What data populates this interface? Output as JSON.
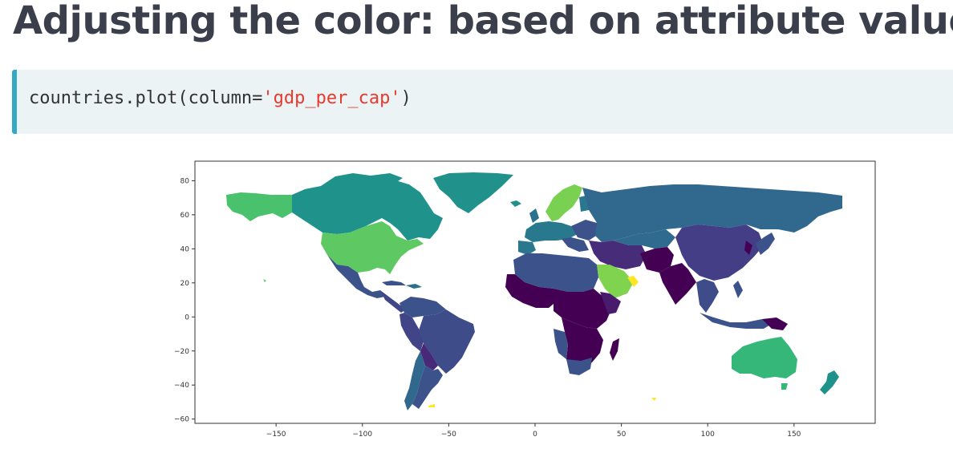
{
  "slide": {
    "title": "Adjusting the color: based on attribute values"
  },
  "code": {
    "prefix": "countries.plot(column=",
    "string_arg": "'gdp_per_cap'",
    "suffix": ")"
  },
  "chart_data": {
    "type": "choropleth",
    "title": "",
    "xlabel": "",
    "ylabel": "",
    "x_ticks": [
      "−150",
      "−100",
      "−50",
      "0",
      "50",
      "100",
      "150"
    ],
    "x_tick_values": [
      -150,
      -100,
      -50,
      0,
      50,
      100,
      150
    ],
    "y_ticks": [
      "80",
      "60",
      "40",
      "20",
      "0",
      "−20",
      "−40",
      "−60"
    ],
    "y_tick_values": [
      80,
      60,
      40,
      20,
      0,
      -20,
      -40,
      -60
    ],
    "xlim": [
      -197,
      197
    ],
    "ylim": [
      -62.5,
      91.5
    ],
    "colormap": "viridis",
    "color_column": "gdp_per_cap",
    "grid": false,
    "legend": "none",
    "colors": {
      "low": "#440154",
      "low_mid": "#3b528b",
      "mid": "#21918c",
      "high_mid": "#5ec962",
      "high": "#fde725"
    }
  }
}
